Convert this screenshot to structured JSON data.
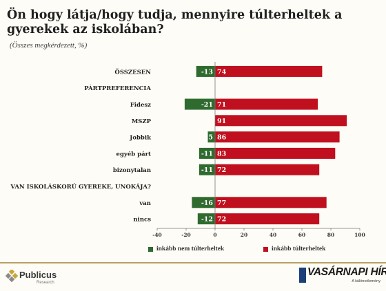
{
  "title": "Ön hogy látja/hogy tudja, mennyire túlterheltek a gyerekek az iskolában?",
  "subtitle": "(Összes megkérdezett, %)",
  "colors": {
    "negative": "#2f6b2f",
    "positive": "#c0101f"
  },
  "chart_data": {
    "type": "bar",
    "orientation": "horizontal",
    "stacked": "diverging",
    "categories": [
      "ÖSSZESEN",
      "PÁRTPREFERENCIA",
      "Fidesz",
      "MSZP",
      "Jobbik",
      "egyéb párt",
      "bizonytalan",
      "VAN ISKOLÁSKORÚ GYEREKE, UNOKÁJA?",
      "van",
      "nincs"
    ],
    "series": [
      {
        "name": "inkább nem túlterheltek",
        "color": "#2f6b2f",
        "values": [
          -13,
          null,
          -21,
          null,
          -5,
          -11,
          -11,
          null,
          -16,
          -12
        ],
        "labels": [
          "-13",
          "",
          "-21",
          "",
          "5",
          "-11",
          "-11",
          "",
          "-16",
          "-12"
        ]
      },
      {
        "name": "inkább túlterheltek",
        "color": "#c0101f",
        "values": [
          74,
          null,
          71,
          91,
          86,
          83,
          72,
          null,
          77,
          72
        ],
        "labels": [
          "74",
          "",
          "71",
          "91",
          "86",
          "83",
          "72",
          "",
          "77",
          "72"
        ]
      }
    ],
    "xlim": [
      -40,
      100
    ],
    "xticks": [
      "-40",
      "-20",
      "0",
      "20",
      "40",
      "60",
      "80",
      "100"
    ],
    "legend": "bottom"
  },
  "footer": {
    "left_logo": {
      "name": "Publicus",
      "sub": "Research"
    },
    "right_logo": {
      "name": "VASÁRNAPI HÍREK",
      "tagline": "A különvélemény"
    }
  }
}
